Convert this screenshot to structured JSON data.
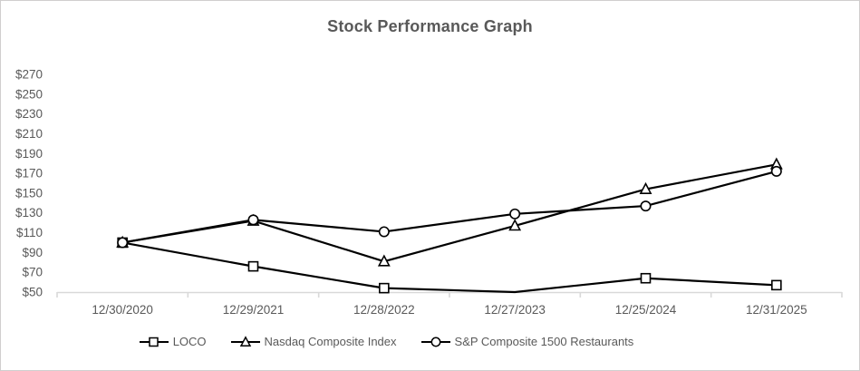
{
  "chart_data": {
    "type": "line",
    "title": "Stock Performance Graph",
    "categories": [
      "12/30/2020",
      "12/29/2021",
      "12/28/2022",
      "12/27/2023",
      "12/25/2024",
      "12/31/2025"
    ],
    "series": [
      {
        "name": "LOCO",
        "marker": "square",
        "values": [
          100,
          76,
          54,
          50,
          64,
          57
        ],
        "markers_hidden": [
          3
        ]
      },
      {
        "name": "Nasdaq Composite Index",
        "marker": "triangle",
        "values": [
          100,
          122,
          81,
          117,
          154,
          179
        ],
        "markers_hidden": []
      },
      {
        "name": "S&P Composite 1500 Restaurants",
        "marker": "circle",
        "values": [
          100,
          123,
          111,
          129,
          137,
          172
        ],
        "markers_hidden": []
      }
    ],
    "y_axis": {
      "min": 50,
      "max": 270,
      "step": 20,
      "tick_labels": [
        "$270",
        "$250",
        "$230",
        "$210",
        "$190",
        "$170",
        "$150",
        "$130",
        "$110",
        "$90",
        "$70",
        "$50"
      ]
    },
    "grid": false,
    "legend_position": "bottom",
    "colors": {
      "line": "#000000",
      "marker_fill": "#ffffff",
      "text": "#595959",
      "axis_line": "#d9d9d9",
      "frame_border": "#d0cece"
    }
  }
}
